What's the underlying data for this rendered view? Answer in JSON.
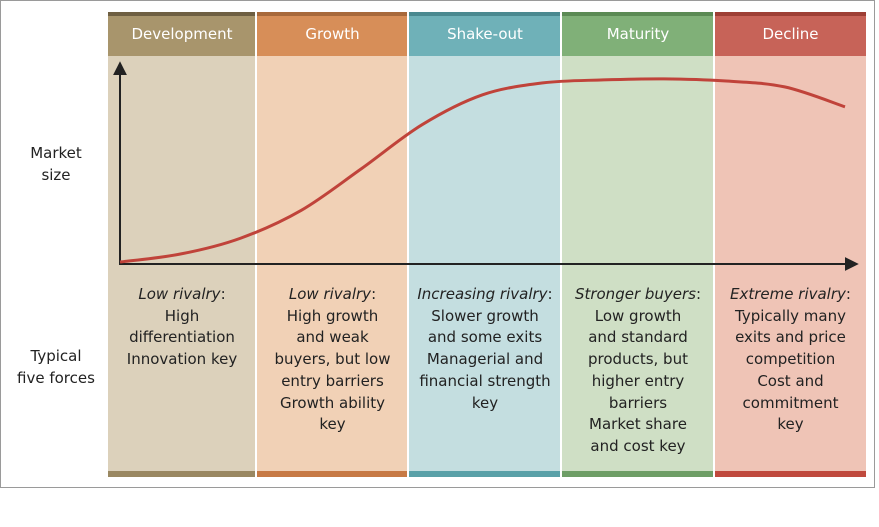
{
  "row_labels": {
    "market_size": [
      "Market",
      "size"
    ],
    "five_forces": [
      "Typical",
      "five forces"
    ]
  },
  "stages": [
    {
      "name": "Development",
      "colors": {
        "header": "#a8956c",
        "cap": "#6e5f42",
        "body": "#dcd1bb",
        "foot": "#9a8862"
      },
      "forces_title": "Low rivalry",
      "forces_lines": [
        "High",
        "differentiation",
        "Innovation key"
      ]
    },
    {
      "name": "Growth",
      "colors": {
        "header": "#d78e58",
        "cap": "#a8693b",
        "body": "#f1d1b6",
        "foot": "#c77a45"
      },
      "forces_title": "Low rivalry",
      "forces_lines": [
        "High growth",
        "and weak",
        "buyers, but low",
        "entry barriers",
        "Growth ability",
        "key"
      ]
    },
    {
      "name": "Shake-out",
      "colors": {
        "header": "#6fb1b8",
        "cap": "#4a8990",
        "body": "#c4dee0",
        "foot": "#5aa1a8"
      },
      "forces_title": "Increasing rivalry",
      "forces_lines": [
        "Slower growth",
        "and some exits",
        "Managerial and",
        "financial strength",
        "key"
      ]
    },
    {
      "name": "Maturity",
      "colors": {
        "header": "#80b078",
        "cap": "#5b8a54",
        "body": "#cfdfc5",
        "foot": "#6e9e66"
      },
      "forces_title": "Stronger buyers",
      "forces_lines": [
        "Low growth",
        "and standard",
        "products, but",
        "higher entry",
        "barriers",
        "Market share",
        "and cost key"
      ]
    },
    {
      "name": "Decline",
      "colors": {
        "header": "#c76358",
        "cap": "#9e3f35",
        "body": "#efc4b6",
        "foot": "#c04a3e"
      },
      "forces_title": "Extreme rivalry",
      "forces_lines": [
        "Typically many",
        "exits and price",
        "competition",
        "Cost and",
        "commitment",
        "key"
      ]
    }
  ],
  "curve": {
    "color": "#c0433a",
    "axis_color": "#222222",
    "market_size_levels": [
      0,
      0.04,
      0.12,
      0.26,
      0.47,
      0.69,
      0.84,
      0.9,
      0.915,
      0.92,
      0.91,
      0.88,
      0.78
    ]
  }
}
